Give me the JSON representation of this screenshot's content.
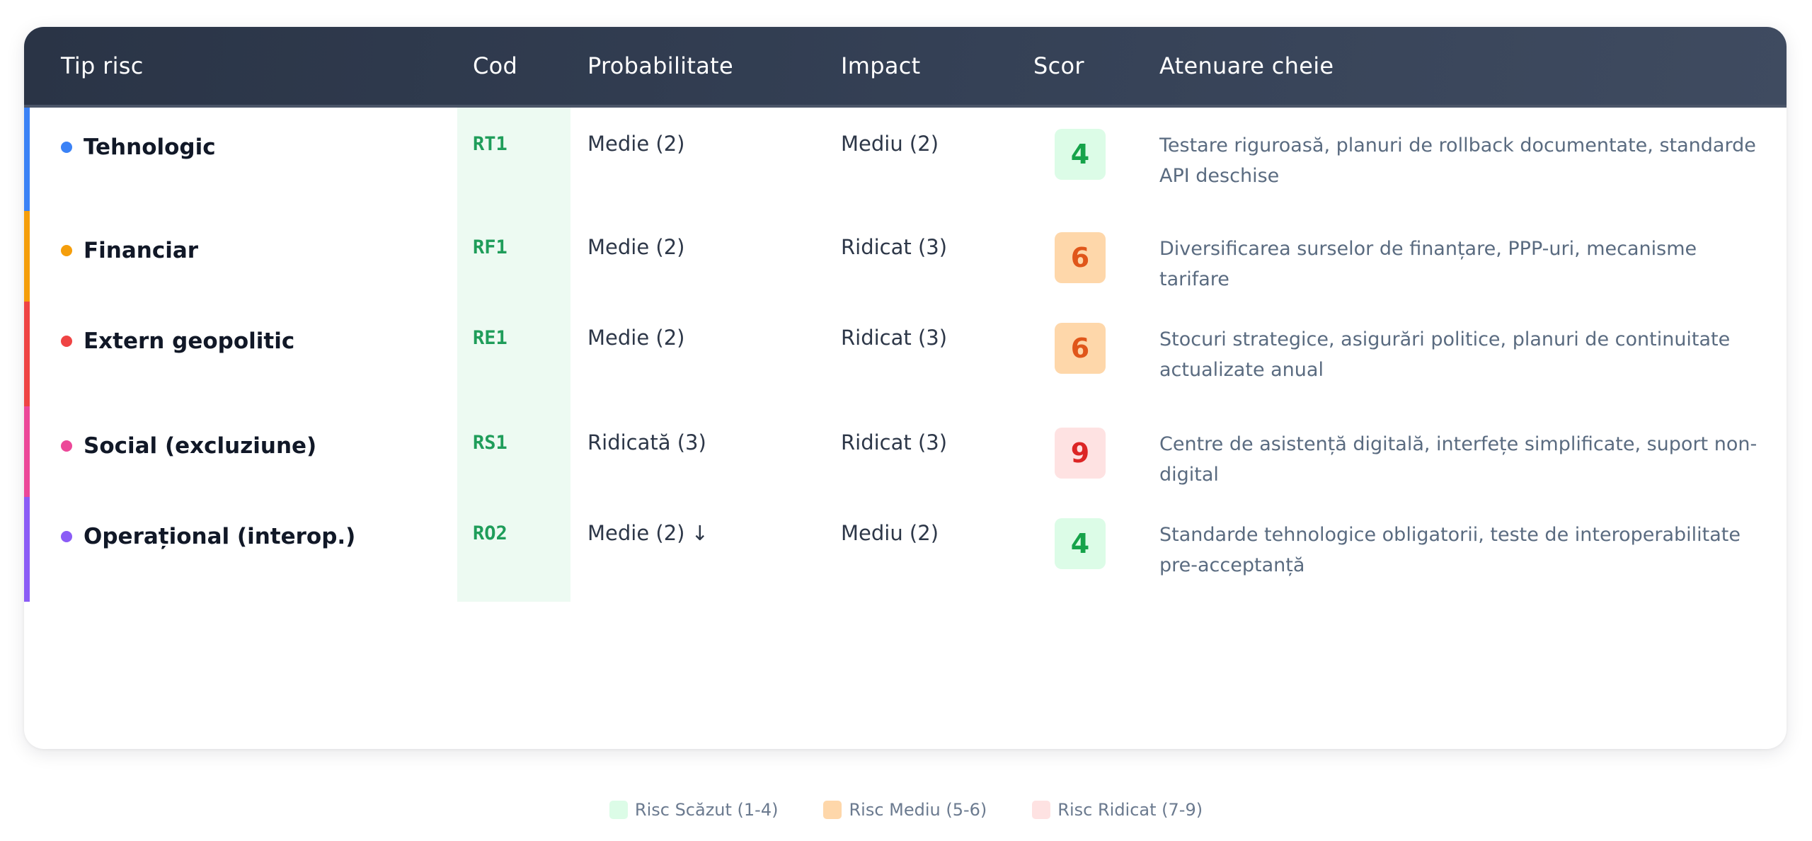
{
  "table": {
    "headers": {
      "type": "Tip risc",
      "code": "Cod",
      "probability": "Probabilitate",
      "impact": "Impact",
      "score": "Scor",
      "mitigation": "Atenuare cheie"
    },
    "rows": [
      {
        "name": "Tehnologic",
        "code": "RT1",
        "probability": "Medie (2)",
        "impact": "Mediu (2)",
        "score": "4",
        "level": "low",
        "accent_color": "#3b82f6",
        "mitigation": "Testare riguroasă, planuri de rollback documentate, standarde API deschise"
      },
      {
        "name": "Financiar",
        "code": "RF1",
        "probability": "Medie (2)",
        "impact": "Ridicat (3)",
        "score": "6",
        "level": "medium",
        "accent_color": "#f59e0b",
        "mitigation": "Diversificarea surselor de finanțare, PPP-uri, mecanisme tarifare"
      },
      {
        "name": "Extern geopolitic",
        "code": "RE1",
        "probability": "Medie (2)",
        "impact": "Ridicat (3)",
        "score": "6",
        "level": "medium",
        "accent_color": "#ef4444",
        "mitigation": "Stocuri strategice, asigurări politice, planuri de continuitate actualizate anual"
      },
      {
        "name": "Social (excluziune)",
        "code": "RS1",
        "probability": "Ridicată (3)",
        "impact": "Ridicat (3)",
        "score": "9",
        "level": "high",
        "accent_color": "#ec4899",
        "mitigation": "Centre de asistență digitală, interfețe simplificate, suport non-digital"
      },
      {
        "name": "Operațional (interop.)",
        "code": "RO2",
        "probability": "Medie (2) ↓",
        "impact": "Mediu (2)",
        "score": "4",
        "level": "low",
        "accent_color": "#8b5cf6",
        "mitigation": "Standarde tehnologice obligatorii, teste de interoperabilitate pre-acceptanță"
      }
    ]
  },
  "legend": [
    {
      "label": "Risc Scăzut (1-4)",
      "color": "#dcfce7"
    },
    {
      "label": "Risc Mediu (5-6)",
      "color": "#fed7aa"
    },
    {
      "label": "Risc Ridicat (7-9)",
      "color": "#fee2e2"
    }
  ],
  "colors": {
    "header_bg": "#2f3a4d",
    "code_bg": "#edfaf2",
    "code_text": "#1f9d5a"
  }
}
